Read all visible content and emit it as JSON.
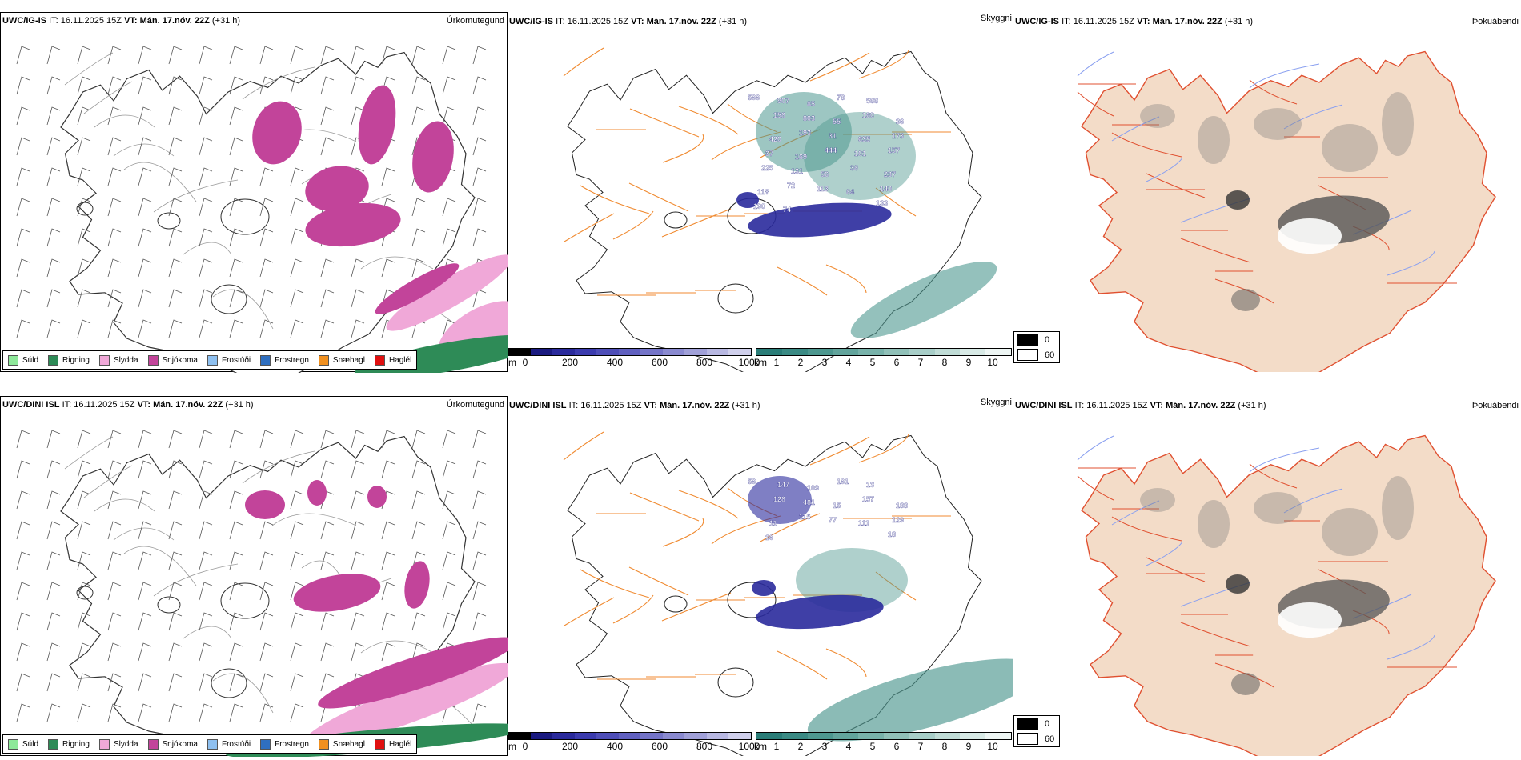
{
  "rows": [
    {
      "model": "UWC/IG-IS",
      "panels": [
        {
          "header": {
            "model": "UWC/IG-IS",
            "it_label": "IT:",
            "it": "16.11.2025 15Z",
            "vt_label": "VT:",
            "vt": "Mán. 17.nóv. 22Z",
            "lead": "(+31 h)"
          },
          "title": "Úrkomutegund"
        },
        {
          "header": {
            "model": "UWC/IG-IS",
            "it_label": "IT:",
            "it": "16.11.2025 15Z",
            "vt_label": "VT:",
            "vt": "Mán. 17.nóv. 22Z",
            "lead": "(+31 h)"
          },
          "title": "Skyggni"
        },
        {
          "header": {
            "model": "UWC/IG-IS",
            "it_label": "IT:",
            "it": "16.11.2025 15Z",
            "vt_label": "VT:",
            "vt": "Mán. 17.nóv. 22Z",
            "lead": "(+31 h)"
          },
          "title": "Þokuábendi"
        }
      ],
      "visibility_labels": [
        "566",
        "907",
        "85",
        "78",
        "588",
        "36",
        "158",
        "803",
        "55",
        "160",
        "173",
        "420",
        "193",
        "31",
        "635",
        "157",
        "37",
        "169",
        "444",
        "101",
        "237",
        "225",
        "131",
        "56",
        "38",
        "140",
        "118",
        "72",
        "113",
        "84",
        "133",
        "190",
        "74"
      ]
    },
    {
      "model": "UWC/DINI ISL",
      "panels": [
        {
          "header": {
            "model": "UWC/DINI ISL",
            "it_label": "IT:",
            "it": "16.11.2025 15Z",
            "vt_label": "VT:",
            "vt": "Mán. 17.nóv. 22Z",
            "lead": "(+31 h)"
          },
          "title": "Úrkomutegund"
        },
        {
          "header": {
            "model": "UWC/DINI ISL",
            "it_label": "IT:",
            "it": "16.11.2025 15Z",
            "vt_label": "VT:",
            "vt": "Mán. 17.nóv. 22Z",
            "lead": "(+31 h)"
          },
          "title": "Skyggni"
        },
        {
          "header": {
            "model": "UWC/DINI ISL",
            "it_label": "IT:",
            "it": "16.11.2025 15Z",
            "vt_label": "VT:",
            "vt": "Mán. 17.nóv. 22Z",
            "lead": "(+31 h)"
          },
          "title": "Þokuábendi"
        }
      ],
      "visibility_labels": [
        "56",
        "147",
        "109",
        "161",
        "13",
        "188",
        "128",
        "481",
        "15",
        "157",
        "129",
        "11",
        "115",
        "77",
        "111",
        "18",
        "16"
      ]
    }
  ],
  "precip_legend": [
    {
      "label": "Súld",
      "color": "#8ee89a"
    },
    {
      "label": "Rigning",
      "color": "#2e8b57"
    },
    {
      "label": "Slydda",
      "color": "#f0a8d8"
    },
    {
      "label": "Snjókoma",
      "color": "#c2449a"
    },
    {
      "label": "Frostúði",
      "color": "#8ec0f0"
    },
    {
      "label": "Frostregn",
      "color": "#2f6fc0"
    },
    {
      "label": "Snæhagl",
      "color": "#f09020"
    },
    {
      "label": "Haglél",
      "color": "#e01010"
    }
  ],
  "ceiling_bar": {
    "unit": "m",
    "ticks": [
      "0",
      "200",
      "400",
      "600",
      "800",
      "1000"
    ],
    "colors": [
      "#000000",
      "#1a1a80",
      "#2a2a9c",
      "#3b3bae",
      "#4e4eb8",
      "#6060c0",
      "#7474c8",
      "#8a8ad0",
      "#a0a0d8",
      "#b8b8e2",
      "#d0d0ec"
    ]
  },
  "visibility_bar": {
    "unit": "km",
    "ticks": [
      "1",
      "2",
      "3",
      "4",
      "5",
      "6",
      "7",
      "8",
      "9",
      "10"
    ],
    "colors": [
      "#2a7d78",
      "#3a8a84",
      "#4d978f",
      "#62a49c",
      "#78b2aa",
      "#90c0b8",
      "#a8cec8",
      "#c0dcd6",
      "#d8eae6",
      "#eef6f4"
    ]
  },
  "fog_legend": [
    {
      "value": "0",
      "color": "#000000"
    },
    {
      "value": "60",
      "color": "#ffffff"
    }
  ]
}
